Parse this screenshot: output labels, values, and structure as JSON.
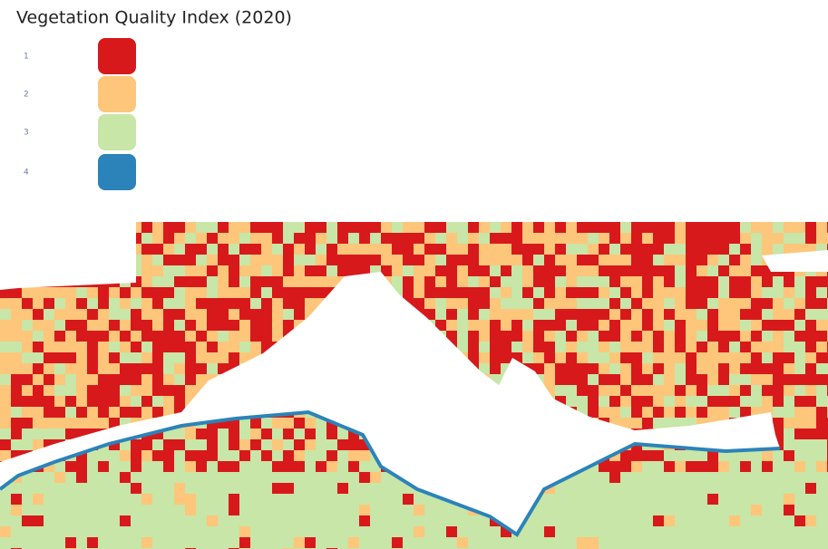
{
  "legend": {
    "title": "Vegetation Quality Index (2020)",
    "items": [
      {
        "label": "1",
        "color": "#d7191c"
      },
      {
        "label": "2",
        "color": "#fdc67a"
      },
      {
        "label": "3",
        "color": "#c7e6a7"
      },
      {
        "label": "4",
        "color": "#2b83ba"
      }
    ]
  }
}
